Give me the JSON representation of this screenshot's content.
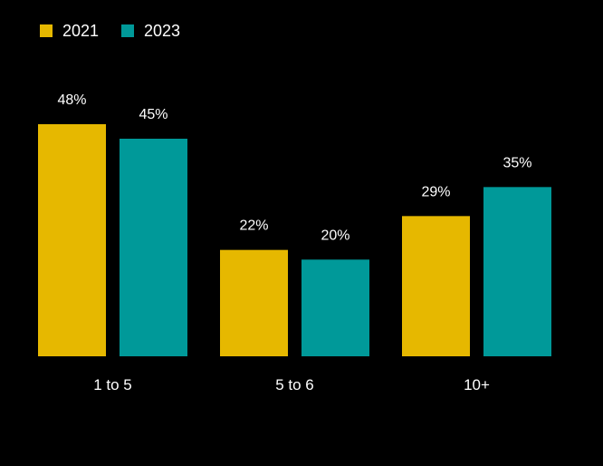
{
  "chart_data": {
    "type": "bar",
    "categories": [
      "1 to 5",
      "5 to 6",
      "10+"
    ],
    "series": [
      {
        "name": "2021",
        "values": [
          48,
          22,
          29
        ],
        "labels": [
          "48%",
          "22%",
          "29%"
        ],
        "color": "#E6B800"
      },
      {
        "name": "2023",
        "values": [
          45,
          20,
          35
        ],
        "labels": [
          "45%",
          "20%",
          "35%"
        ],
        "color": "#009999"
      }
    ],
    "ylim": [
      0,
      48
    ],
    "legend_position": "top-left",
    "grid": false,
    "background": "#000000"
  }
}
